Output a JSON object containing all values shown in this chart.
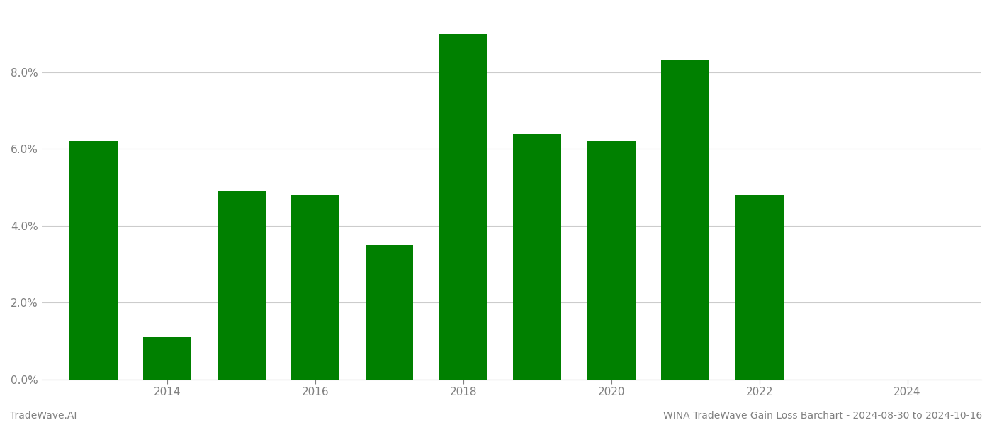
{
  "years": [
    2013,
    2014,
    2015,
    2016,
    2017,
    2018,
    2019,
    2020,
    2021,
    2022,
    2023
  ],
  "values": [
    0.062,
    0.011,
    0.049,
    0.048,
    0.035,
    0.09,
    0.064,
    0.062,
    0.083,
    0.048,
    0.0
  ],
  "bar_color": "#008000",
  "background_color": "#ffffff",
  "grid_color": "#cccccc",
  "tick_color": "#808080",
  "footer_left": "TradeWave.AI",
  "footer_right": "WINA TradeWave Gain Loss Barchart - 2024-08-30 to 2024-10-16",
  "footer_color": "#808080",
  "footer_fontsize": 10,
  "ylim": [
    0,
    0.096
  ],
  "yticks": [
    0.0,
    0.02,
    0.04,
    0.06,
    0.08
  ],
  "xlim": [
    2012.3,
    2025.0
  ],
  "xtick_years": [
    2014,
    2016,
    2018,
    2020,
    2022,
    2024
  ],
  "bar_width": 0.65
}
